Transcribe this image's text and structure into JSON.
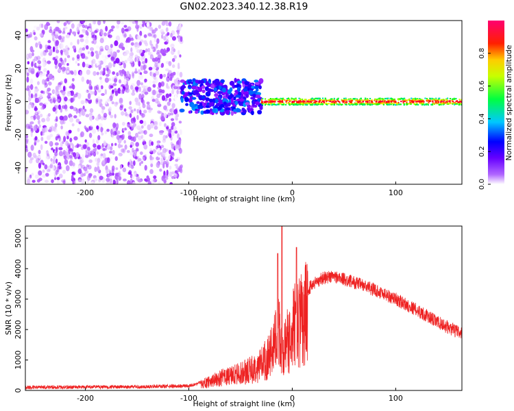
{
  "title": "GN02.2023.340.12.38.R19",
  "chart_data": [
    {
      "type": "heatmap",
      "title": "",
      "xlabel": "Height of straight line (km)",
      "ylabel": "Frequency (Hz)",
      "xlim": [
        -258,
        164
      ],
      "ylim": [
        -50,
        49
      ],
      "x_ticks": [
        -200,
        -100,
        0,
        100
      ],
      "y_ticks": [
        -40,
        -20,
        0,
        20,
        40
      ],
      "x_tick_labels": [
        "-200",
        "-100",
        "0",
        "100"
      ],
      "y_tick_labels": [
        "-40",
        "-20",
        "0",
        "20",
        "40"
      ],
      "colorbar": {
        "label": "Normalized spectral amplitude",
        "range": [
          0,
          1
        ],
        "ticks": [
          0.0,
          0.2,
          0.4,
          0.6,
          0.8
        ],
        "tick_labels": [
          "0.0",
          "0.2",
          "0.4",
          "0.6",
          "0.8"
        ],
        "colormap": [
          "#ffffff",
          "#8800ff",
          "#0000ff",
          "#00ccff",
          "#00ff00",
          "#ffff00",
          "#ff0000",
          "#ff0080"
        ]
      },
      "regions": [
        {
          "description": "noise",
          "x_range": [
            -258,
            -107
          ],
          "freq_range": [
            -50,
            49
          ],
          "amplitude_range": [
            0.0,
            0.15
          ]
        },
        {
          "description": "transition",
          "x_range": [
            -107,
            -30
          ],
          "freq_center": 3,
          "freq_spread": 10,
          "amplitude_range": [
            0.1,
            0.4
          ]
        },
        {
          "description": "signal band",
          "x_range": [
            -30,
            164
          ],
          "freq_center": 0,
          "freq_spread": 2,
          "amplitude_range": [
            0.4,
            0.95
          ]
        }
      ]
    },
    {
      "type": "line",
      "title": "",
      "xlabel": "Height of straight line (km)",
      "ylabel": "SNR (10 * v/v)",
      "xlim": [
        -258,
        164
      ],
      "ylim": [
        0,
        5400
      ],
      "x_ticks": [
        -200,
        -100,
        0,
        100
      ],
      "y_ticks": [
        0,
        1000,
        2000,
        3000,
        4000,
        5000
      ],
      "x_tick_labels": [
        "-200",
        "-100",
        "0",
        "100"
      ],
      "y_tick_labels": [
        "0",
        "1000",
        "2000",
        "3000",
        "4000",
        "5000"
      ],
      "color": "#ee2222",
      "series": [
        {
          "x": [
            -258,
            -200,
            -150,
            -100,
            -85,
            -70,
            -50,
            -35,
            -25,
            -20,
            -15,
            -12,
            -10,
            -5,
            0,
            10,
            15,
            20,
            25,
            30,
            40,
            60,
            80,
            100,
            120,
            140,
            164
          ],
          "y": [
            100,
            110,
            120,
            150,
            300,
            500,
            700,
            900,
            1300,
            1600,
            2100,
            2600,
            1300,
            2000,
            2500,
            3000,
            3300,
            3500,
            3600,
            3700,
            3750,
            3550,
            3300,
            3000,
            2650,
            2250,
            1850
          ]
        }
      ],
      "spikes": [
        {
          "x": -10,
          "y": 5400
        },
        {
          "x": 4,
          "y": 4700
        },
        {
          "x": -14,
          "y": 4500
        }
      ]
    }
  ]
}
